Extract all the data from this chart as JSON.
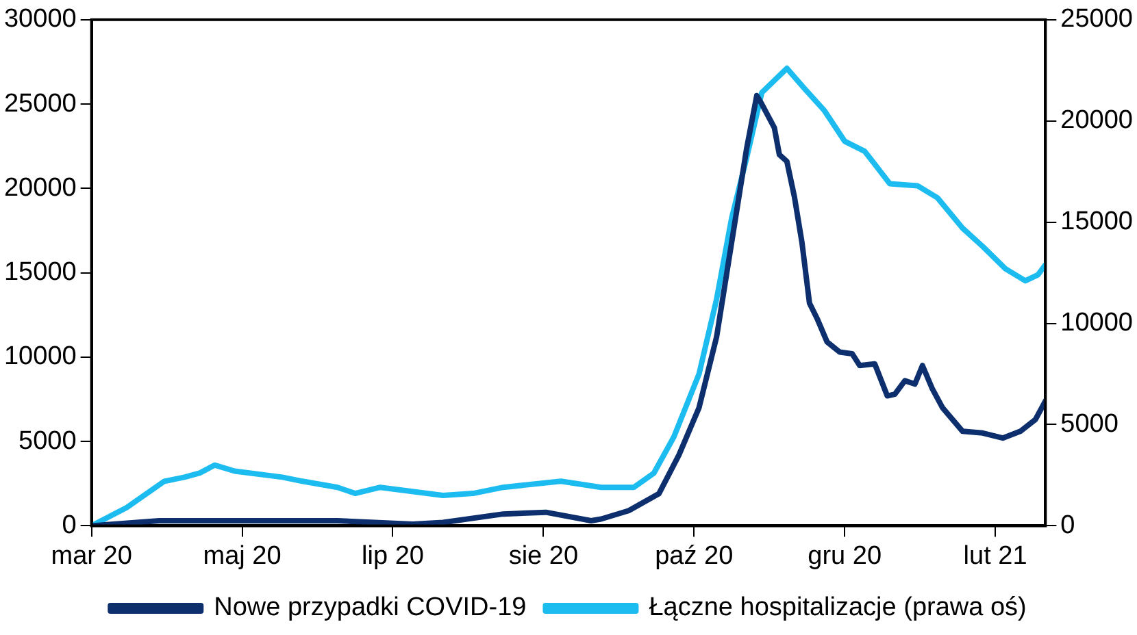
{
  "chart_data": {
    "type": "line",
    "x": [
      "2020-03-04",
      "2020-03-31",
      "2020-05-04",
      "2020-06-10",
      "2020-07-10",
      "2020-07-22",
      "2020-08-15",
      "2020-09-01",
      "2020-09-19",
      "2020-09-23",
      "2020-10-04",
      "2020-10-16",
      "2020-10-24",
      "2020-11-01",
      "2020-11-08",
      "2020-11-14",
      "2020-11-20",
      "2020-11-24",
      "2020-11-26",
      "2020-12-01",
      "2020-12-03",
      "2020-12-06",
      "2020-12-09",
      "2020-12-12",
      "2020-12-15",
      "2020-12-18",
      "2020-12-22",
      "2020-12-27",
      "2021-01-01",
      "2021-01-04",
      "2021-01-10",
      "2021-01-15",
      "2021-01-18",
      "2021-01-22",
      "2021-01-26",
      "2021-01-29",
      "2021-02-02",
      "2021-02-06",
      "2021-02-14",
      "2021-02-22",
      "2021-03-02",
      "2021-03-09",
      "2021-03-15",
      "2021-03-19"
    ],
    "series": [
      {
        "name": "Nowe przypadki COVID-19",
        "color": "#0d2f6e",
        "values": [
          0,
          300,
          300,
          300,
          100,
          200,
          700,
          800,
          300,
          400,
          900,
          1900,
          4200,
          7000,
          11200,
          16800,
          22400,
          25500,
          25000,
          23600,
          22000,
          21600,
          19500,
          16800,
          13200,
          12300,
          10900,
          10300,
          10200,
          9500,
          9600,
          7700,
          7800,
          8600,
          8400,
          9500,
          8100,
          7000,
          5600,
          5500,
          5200,
          5600,
          6300,
          7400
        ]
      },
      {
        "name": "Łączne hospitalizacje (prawa oś)",
        "color": "#1cbcf0",
        "axis": "y2",
        "x": [
          "2020-03-04",
          "2020-03-18",
          "2020-04-02",
          "2020-04-10",
          "2020-04-16",
          "2020-04-22",
          "2020-04-30",
          "2020-05-19",
          "2020-05-27",
          "2020-06-10",
          "2020-06-17",
          "2020-06-27",
          "2020-07-22",
          "2020-08-03",
          "2020-08-15",
          "2020-09-07",
          "2020-09-23",
          "2020-10-06",
          "2020-10-14",
          "2020-10-22",
          "2020-11-01",
          "2020-11-08",
          "2020-11-14",
          "2020-11-20",
          "2020-11-26",
          "2020-12-06",
          "2020-12-13",
          "2020-12-21",
          "2020-12-29",
          "2021-01-06",
          "2021-01-16",
          "2021-01-27",
          "2021-02-04",
          "2021-02-14",
          "2021-02-22",
          "2021-03-03",
          "2021-03-11",
          "2021-03-16",
          "2021-03-19"
        ],
        "values": [
          0,
          900,
          2200,
          2400,
          2600,
          3000,
          2700,
          2400,
          2200,
          1900,
          1600,
          1900,
          1500,
          1600,
          1900,
          2200,
          1900,
          1900,
          2600,
          4400,
          7500,
          11200,
          15200,
          18200,
          21400,
          22600,
          21600,
          20500,
          19000,
          18500,
          16900,
          16800,
          16200,
          14700,
          13800,
          12700,
          12100,
          12400,
          12900
        ]
      }
    ],
    "xlim": [
      "2020-03-04",
      "2021-03-19"
    ],
    "xticks": [
      {
        "value": "2020-03-04",
        "label": "mar 20"
      },
      {
        "value": "2020-05-03",
        "label": "maj 20"
      },
      {
        "value": "2020-07-02",
        "label": "lip 20"
      },
      {
        "value": "2020-08-31",
        "label": "sie 20"
      },
      {
        "value": "2020-10-30",
        "label": "paź 20"
      },
      {
        "value": "2020-12-29",
        "label": "gru 20"
      },
      {
        "value": "2021-02-27",
        "label": "lut 21"
      }
    ],
    "ylim": [
      0,
      30000
    ],
    "yticks": [
      0,
      5000,
      10000,
      15000,
      20000,
      25000,
      30000
    ],
    "y2lim": [
      0,
      25000
    ],
    "y2ticks": [
      0,
      5000,
      10000,
      15000,
      20000,
      25000
    ],
    "grid": false,
    "legend": "bottom",
    "marker": "none",
    "line_style": "solid"
  }
}
